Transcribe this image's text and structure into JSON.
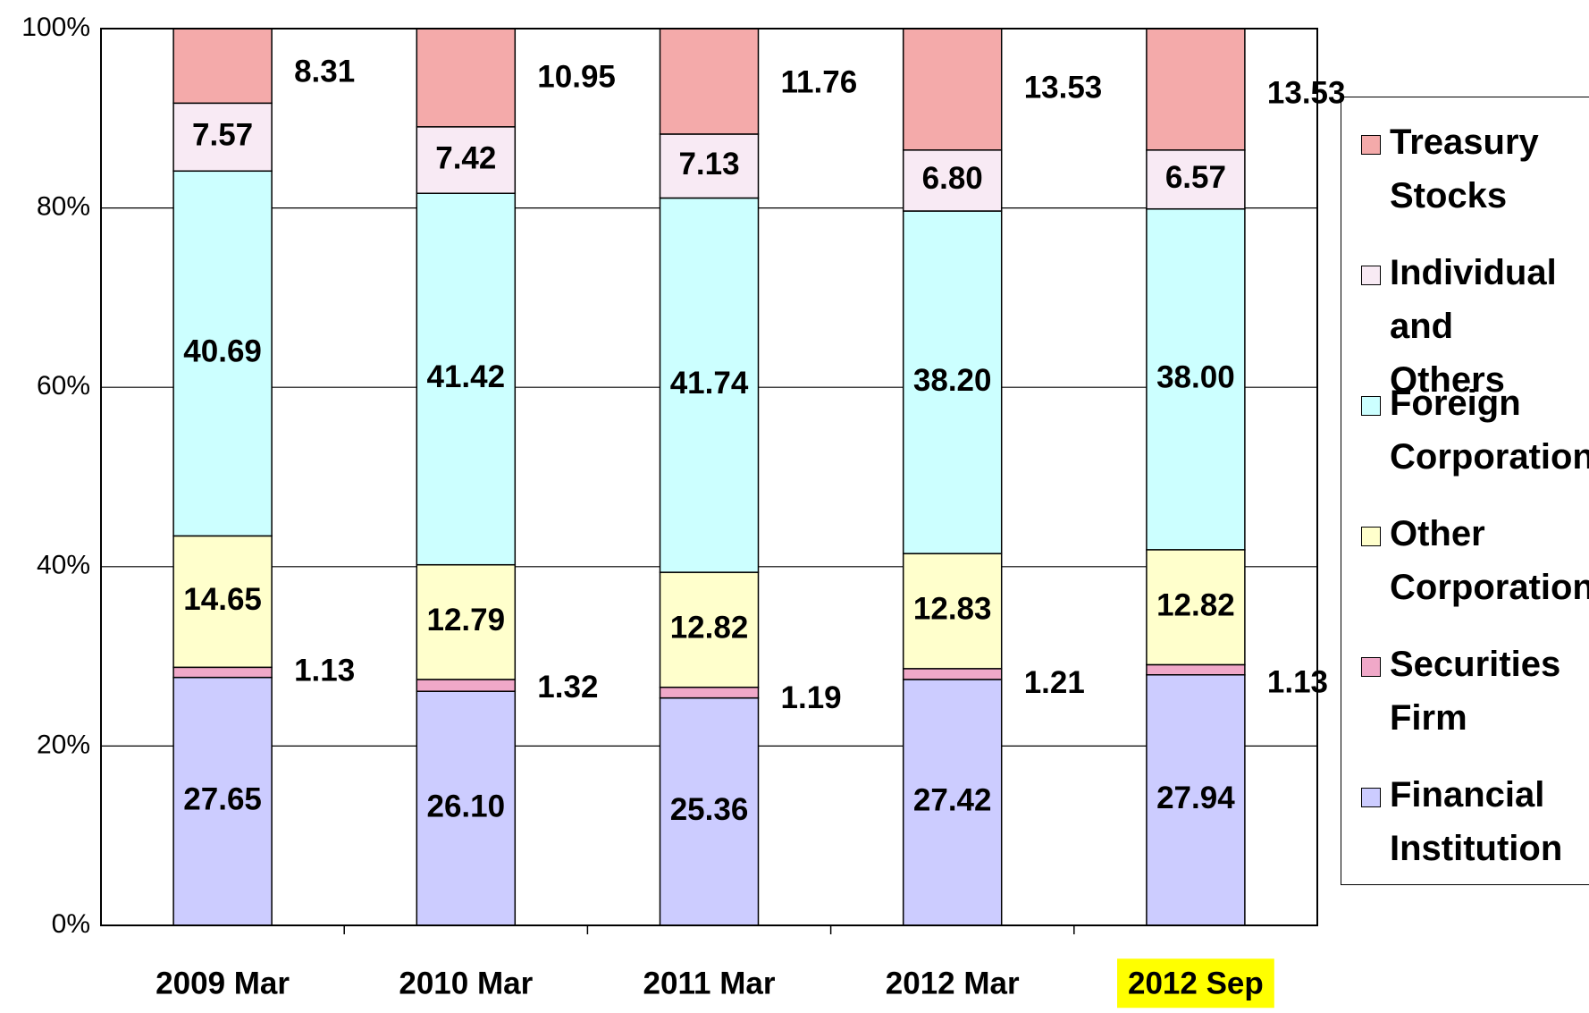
{
  "chart_data": {
    "type": "stacked_bar",
    "categories": [
      "2009 Mar",
      "2010 Mar",
      "2011 Mar",
      "2012 Mar",
      "2012 Sep"
    ],
    "highlight": {
      "category": 4,
      "color": "#ffff00"
    },
    "ylim": [
      0,
      100
    ],
    "yticks": [
      {
        "value": 0,
        "label": "0%"
      },
      {
        "value": 20,
        "label": "20%"
      },
      {
        "value": 40,
        "label": "40%"
      },
      {
        "value": 60,
        "label": "60%"
      },
      {
        "value": 80,
        "label": "80%"
      },
      {
        "value": 100,
        "label": "100%"
      }
    ],
    "grid": true,
    "legend": "right",
    "series": [
      {
        "name": "Financial Institution",
        "color": "#ccccff",
        "values": [
          27.65,
          26.1,
          25.36,
          27.42,
          27.94
        ],
        "value_labels": [
          "27.65",
          "26.10",
          "25.36",
          "27.42",
          "27.94"
        ]
      },
      {
        "name": "Securities Firm",
        "color": "#f0a8c8",
        "label_position": "right",
        "values": [
          1.13,
          1.32,
          1.19,
          1.21,
          1.13
        ],
        "value_labels": [
          "1.13",
          "1.32",
          "1.19",
          "1.21",
          "1.13"
        ]
      },
      {
        "name": "Other Corporation",
        "color": "#ffffcc",
        "values": [
          14.65,
          12.79,
          12.82,
          12.83,
          12.82
        ],
        "value_labels": [
          "14.65",
          "12.79",
          "12.82",
          "12.83",
          "12.82"
        ]
      },
      {
        "name": "Foreign Corporation",
        "color": "#ccffff",
        "values": [
          40.69,
          41.42,
          41.74,
          38.2,
          38.0
        ],
        "value_labels": [
          "40.69",
          "41.42",
          "41.74",
          "38.20",
          "38.00"
        ]
      },
      {
        "name": "Individual and Others",
        "color": "#f8eaf4",
        "values": [
          7.57,
          7.42,
          7.13,
          6.8,
          6.57
        ],
        "value_labels": [
          "7.57",
          "7.42",
          "7.13",
          "6.80",
          "6.57"
        ]
      },
      {
        "name": "Treasury Stocks",
        "color": "#f4aaaa",
        "label_position": "right",
        "values": [
          8.31,
          10.95,
          11.76,
          13.53,
          13.53
        ],
        "value_labels": [
          "8.31",
          "10.95",
          "11.76",
          "13.53",
          "13.53"
        ]
      }
    ]
  }
}
